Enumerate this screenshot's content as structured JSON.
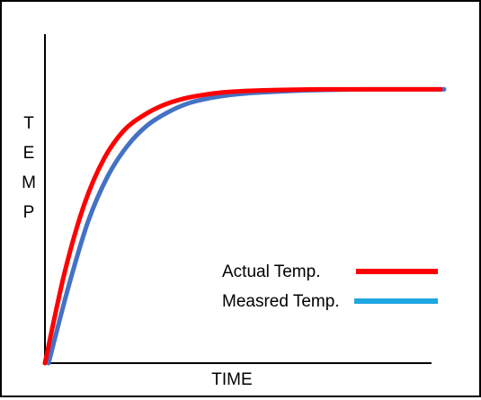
{
  "chart_data": {
    "type": "line",
    "title": "",
    "xlabel": "TIME",
    "ylabel": "TEMP",
    "ylabel_letters": [
      "T",
      "E",
      "M",
      "P"
    ],
    "xlim": [
      0,
      10
    ],
    "ylim": [
      0,
      1.3
    ],
    "grid": false,
    "legend_position": "bottom-right",
    "series": [
      {
        "name": "Actual Temp.",
        "color": "#ff0000",
        "x": [
          0,
          0.5,
          1,
          1.5,
          2,
          2.5,
          3,
          3.5,
          4,
          4.5,
          5,
          5.5,
          6,
          6.5,
          7,
          7.5,
          8,
          8.5,
          9,
          9.5,
          10
        ],
        "y": [
          0,
          0.36,
          0.63,
          0.81,
          0.92,
          0.98,
          1.02,
          1.045,
          1.06,
          1.07,
          1.075,
          1.078,
          1.08,
          1.081,
          1.082,
          1.082,
          1.082,
          1.082,
          1.082,
          1.082,
          1.082
        ]
      },
      {
        "name": "Measred Temp.",
        "color": "#4472c4",
        "legend_color": "#1ea7e1",
        "x": [
          0,
          0.5,
          1,
          1.5,
          2,
          2.5,
          3,
          3.5,
          4,
          4.5,
          5,
          5.5,
          6,
          6.5,
          7,
          7.5,
          8,
          8.5,
          9,
          9.5,
          10
        ],
        "y": [
          0,
          0.3,
          0.56,
          0.74,
          0.86,
          0.94,
          0.99,
          1.025,
          1.045,
          1.058,
          1.066,
          1.071,
          1.075,
          1.078,
          1.08,
          1.081,
          1.082,
          1.082,
          1.082,
          1.082,
          1.082
        ]
      }
    ]
  }
}
